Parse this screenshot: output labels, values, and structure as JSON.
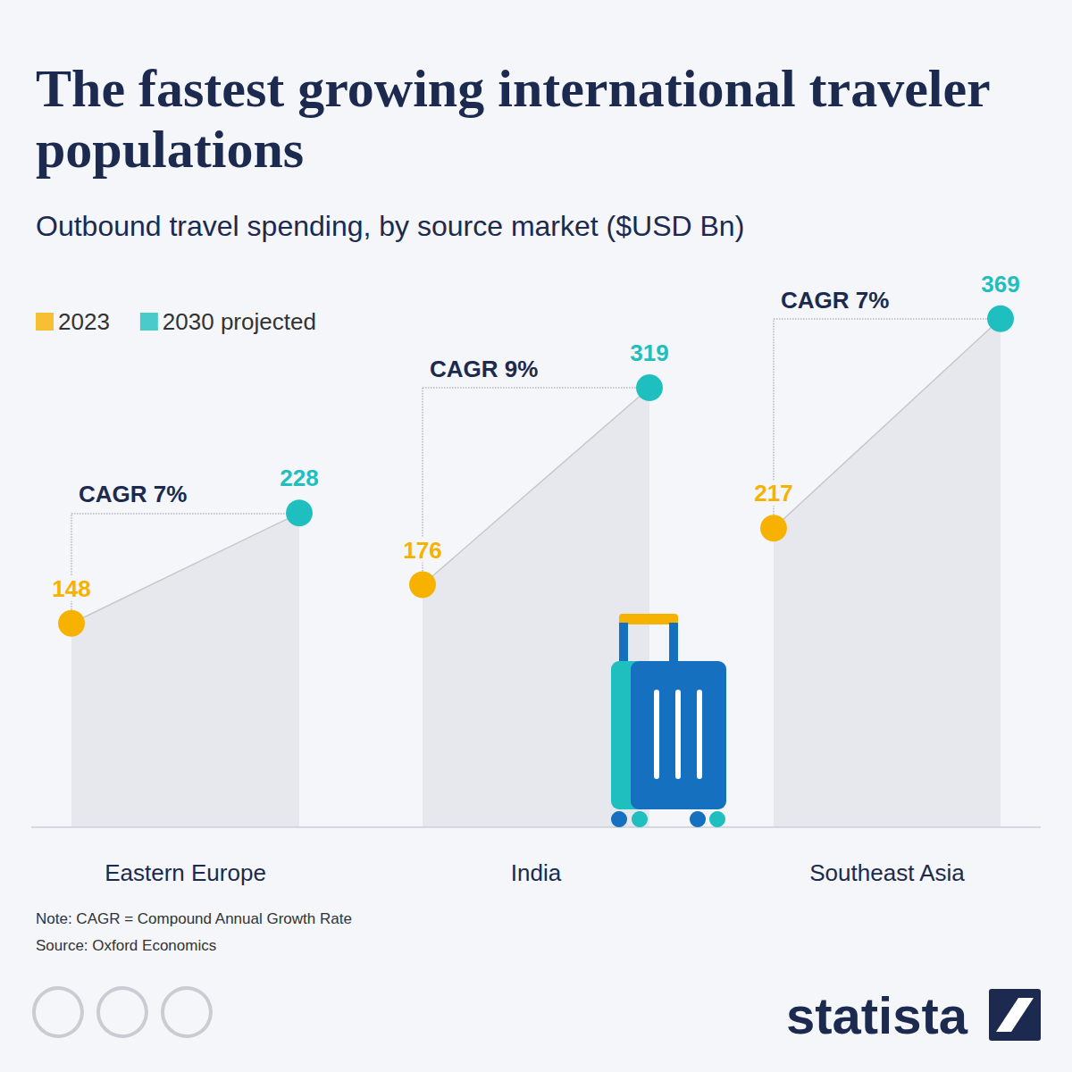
{
  "chart_data": {
    "type": "line",
    "title": "The fastest growing international traveler populations",
    "subtitle": "Outbound travel spending, by source market ($USD Bn)",
    "categories": [
      "Eastern Europe",
      "India",
      "Southeast Asia"
    ],
    "series": [
      {
        "name": "2023",
        "color": "#f7b200",
        "values": [
          148,
          176,
          217
        ]
      },
      {
        "name": "2030 projected",
        "color": "#1fbfbf",
        "values": [
          228,
          319,
          369
        ]
      }
    ],
    "annotations": [
      "CAGR 7%",
      "CAGR 9%",
      "CAGR 7%"
    ],
    "ylim": [
      0,
      400
    ],
    "yticks": [],
    "tick_labels": false,
    "grid": false,
    "data_labels": true,
    "legend": "top-left",
    "notes": [
      "Note: CAGR = Compound Annual Growth Rate",
      "Source: Oxford Economics"
    ],
    "brand": "statista"
  }
}
